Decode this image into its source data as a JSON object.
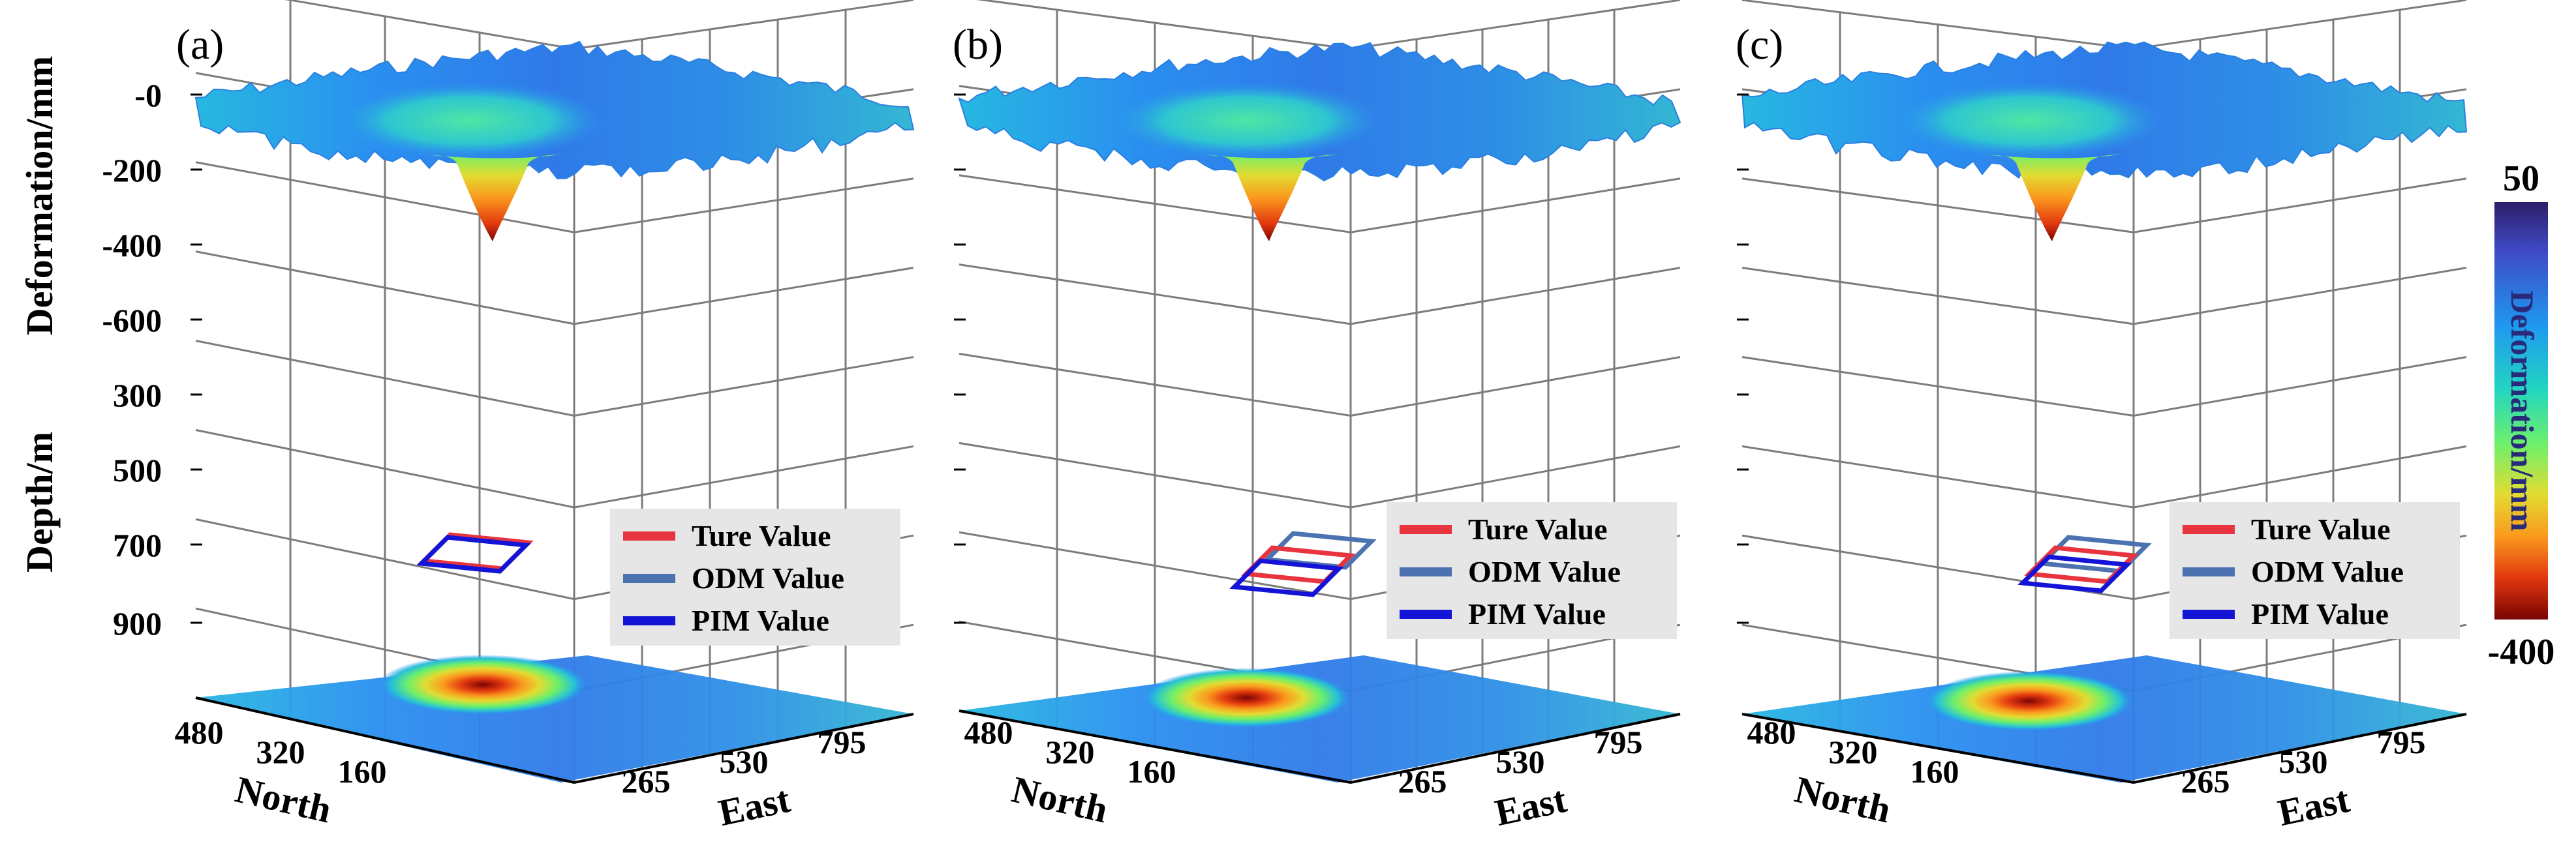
{
  "chart_data": {
    "type": "3d-surface",
    "panels": [
      {
        "label": "(a)",
        "legend": [
          "Ture Value",
          "ODM Value",
          "PIM Value"
        ],
        "models": {
          "true": [
            0,
            0
          ],
          "odm": [
            -4,
            4
          ],
          "pim": [
            -4,
            4
          ]
        }
      },
      {
        "label": "(b)",
        "legend": [
          "Ture Value",
          "ODM Value",
          "PIM Value"
        ],
        "models": {
          "true": [
            0,
            0
          ],
          "odm": [
            32,
            -22
          ],
          "pim": [
            -18,
            20
          ]
        }
      },
      {
        "label": "(c)",
        "legend": [
          "Ture Value",
          "ODM Value",
          "PIM Value"
        ],
        "models": {
          "true": [
            0,
            0
          ],
          "odm": [
            20,
            -16
          ],
          "pim": [
            -10,
            14
          ]
        }
      }
    ],
    "z_axis_deformation": {
      "title": "Deformation/mm",
      "ticks": [
        "-0",
        "-200",
        "-400",
        "-600"
      ],
      "range": [
        -600,
        0
      ]
    },
    "z_axis_depth": {
      "title": "Depth/m",
      "ticks": [
        "300",
        "500",
        "700",
        "900"
      ],
      "range": [
        300,
        900
      ]
    },
    "x_axis": {
      "title": "East",
      "ticks": [
        "265",
        "530",
        "795"
      ]
    },
    "y_axis": {
      "title": "North",
      "ticks": [
        "480",
        "320",
        "160"
      ]
    },
    "colorbar": {
      "title": "Deformation/mm",
      "max_label": "50",
      "min_label": "-400",
      "range": [
        -400,
        50
      ],
      "colormap": "jet"
    },
    "series_colors": {
      "true": "#e8343f",
      "odm": "#4c72b0",
      "pim": "#1414d6"
    },
    "legend_box_color": "#e6e6e6"
  }
}
